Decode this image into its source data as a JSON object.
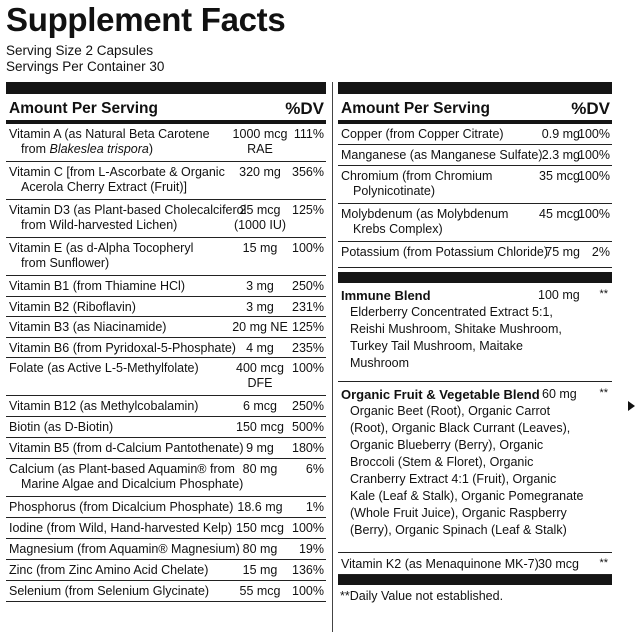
{
  "title": "Supplement Facts",
  "serving_size": "Serving Size 2 Capsules",
  "servings_per_container": "Servings Per Container 30",
  "left": {
    "header_amount": "Amount Per Serving",
    "header_dv": "%DV",
    "rows": [
      {
        "name1": "Vitamin A (as Natural Beta Carotene",
        "name2": "from Blakeslea trispora)",
        "amount1": "1000 mcg",
        "amount2": "RAE",
        "dv": "111%"
      },
      {
        "name1": "Vitamin C [from L-Ascorbate & Organic",
        "name2": "Acerola Cherry Extract (Fruit)]",
        "amount1": "320 mg",
        "amount2": "",
        "dv": "356%"
      },
      {
        "name1": "Vitamin D3 (as Plant-based Cholecalciferol",
        "name2": "from Wild-harvested Lichen)",
        "amount1": "25 mcg",
        "amount2": "(1000 IU)",
        "dv": "125%"
      },
      {
        "name1": "Vitamin E (as d-Alpha Tocopheryl",
        "name2": "from Sunflower)",
        "amount1": "15 mg",
        "amount2": "",
        "dv": "100%"
      },
      {
        "name1": "Vitamin B1 (from Thiamine HCl)",
        "name2": "",
        "amount1": "3 mg",
        "amount2": "",
        "dv": "250%"
      },
      {
        "name1": "Vitamin B2 (Riboflavin)",
        "name2": "",
        "amount1": "3 mg",
        "amount2": "",
        "dv": "231%"
      },
      {
        "name1": "Vitamin B3 (as Niacinamide)",
        "name2": "",
        "amount1": "20 mg NE",
        "amount2": "",
        "dv": "125%"
      },
      {
        "name1": "Vitamin B6 (from Pyridoxal-5-Phosphate)",
        "name2": "",
        "amount1": "4 mg",
        "amount2": "",
        "dv": "235%"
      },
      {
        "name1": "Folate (as Active L-5-Methylfolate)",
        "name2": "",
        "amount1": "400 mcg",
        "amount2": "DFE",
        "dv": "100%"
      },
      {
        "name1": "Vitamin B12 (as Methylcobalamin)",
        "name2": "",
        "amount1": "6 mcg",
        "amount2": "",
        "dv": "250%"
      },
      {
        "name1": "Biotin (as D-Biotin)",
        "name2": "",
        "amount1": "150 mcg",
        "amount2": "",
        "dv": "500%"
      },
      {
        "name1": "Vitamin B5 (from d-Calcium Pantothenate)",
        "name2": "",
        "amount1": "9 mg",
        "amount2": "",
        "dv": "180%"
      },
      {
        "name1": "Calcium (as Plant-based Aquamin® from",
        "name2": "Marine Algae and Dicalcium Phosphate)",
        "amount1": "80 mg",
        "amount2": "",
        "dv": "6%"
      },
      {
        "name1": "Phosphorus (from Dicalcium Phosphate)",
        "name2": "",
        "amount1": "18.6 mg",
        "amount2": "",
        "dv": "1%"
      },
      {
        "name1": "Iodine (from Wild, Hand-harvested Kelp)",
        "name2": "",
        "amount1": "150 mcg",
        "amount2": "",
        "dv": "100%"
      },
      {
        "name1": "Magnesium (from Aquamin® Magnesium)",
        "name2": "",
        "amount1": "80 mg",
        "amount2": "",
        "dv": "19%"
      },
      {
        "name1": "Zinc (from Zinc Amino Acid Chelate)",
        "name2": "",
        "amount1": "15 mg",
        "amount2": "",
        "dv": "136%"
      },
      {
        "name1": "Selenium (from Selenium Glycinate)",
        "name2": "",
        "amount1": "55 mcg",
        "amount2": "",
        "dv": "100%"
      }
    ]
  },
  "right": {
    "header_amount": "Amount Per Serving",
    "header_dv": "%DV",
    "rows": [
      {
        "name1": "Copper (from Copper Citrate)",
        "name2": "",
        "amount1": "0.9 mg",
        "dv": "100%"
      },
      {
        "name1": "Manganese (as Manganese Sulfate)",
        "name2": "",
        "amount1": "2.3 mg",
        "dv": "100%"
      },
      {
        "name1": "Chromium (from Chromium",
        "name2": "Polynicotinate)",
        "amount1": "35 mcg",
        "dv": "100%"
      },
      {
        "name1": "Molybdenum (as Molybdenum",
        "name2": "Krebs Complex)",
        "amount1": "45 mcg",
        "dv": "100%"
      },
      {
        "name1": "Potassium (from Potassium Chloride)",
        "name2": "",
        "amount1": "75 mg",
        "dv": "2%"
      }
    ],
    "immune_blend": {
      "name": "Immune Blend",
      "amount": "100 mg",
      "dv": "**",
      "ingredients": "Elderberry Concentrated Extract 5:1,\nReishi Mushroom, Shitake Mushroom,\nTurkey Tail Mushroom, Maitake\nMushroom"
    },
    "fruit_blend": {
      "name": "Organic Fruit & Vegetable Blend",
      "amount": "60 mg",
      "dv": "**",
      "ingredients": "Organic Beet (Root), Organic Carrot\n(Root), Organic Black Currant (Leaves),\nOrganic Blueberry (Berry), Organic\nBroccoli (Stem & Floret), Organic\nCranberry Extract 4:1 (Fruit), Organic\nKale (Leaf & Stalk), Organic Pomegranate\n(Whole Fruit Juice), Organic Raspberry\n(Berry), Organic Spinach (Leaf & Stalk)"
    },
    "vitamin_k2": {
      "name": "Vitamin K2 (as Menaquinone MK-7)",
      "amount": "30 mcg",
      "dv": "**"
    },
    "footnote": "**Daily Value not established."
  }
}
